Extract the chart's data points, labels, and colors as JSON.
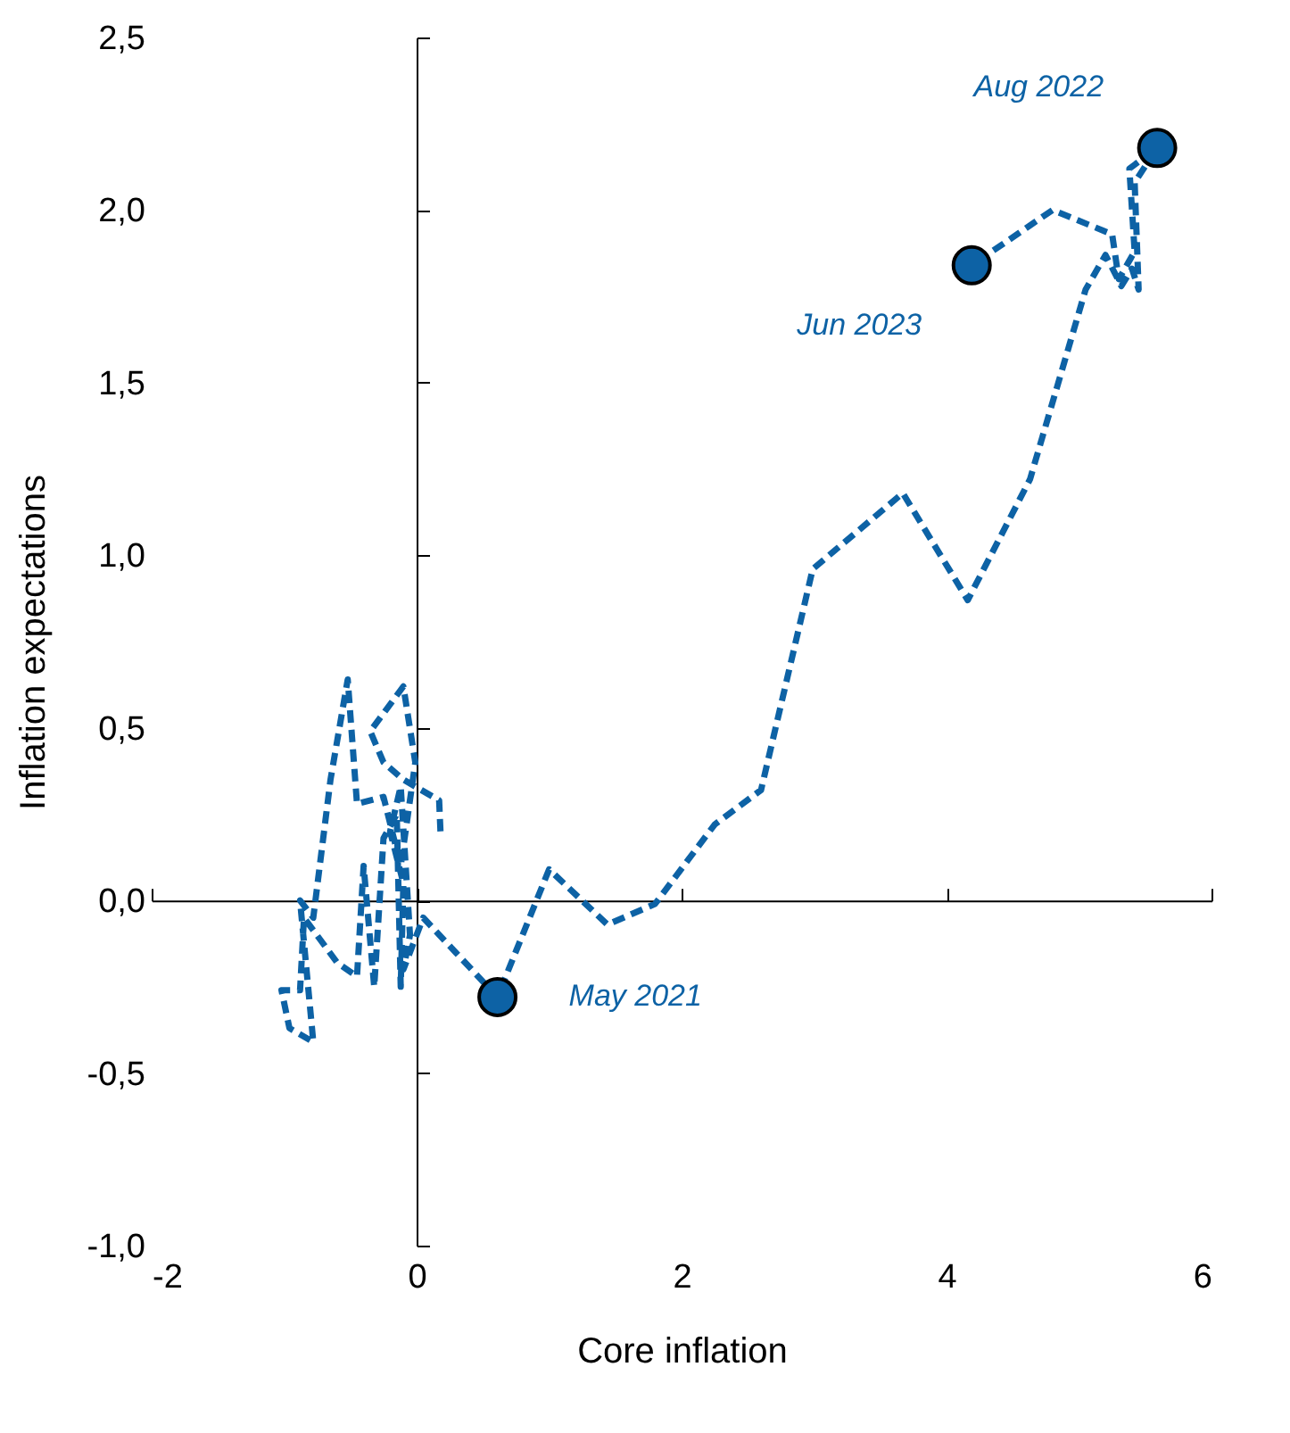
{
  "chart_data": {
    "type": "line",
    "xlabel": "Core inflation",
    "ylabel": "Inflation expectations",
    "xlim": [
      -2,
      6
    ],
    "xticks": [
      -2,
      0,
      2,
      4,
      6
    ],
    "ylim": [
      -1,
      2.5
    ],
    "yticks": [
      {
        "value": -1,
        "label": "-1,0"
      },
      {
        "value": -0.5,
        "label": "-0,5"
      },
      {
        "value": 0,
        "label": "0,0"
      },
      {
        "value": 0.5,
        "label": "0,5"
      },
      {
        "value": 1,
        "label": "1,0"
      },
      {
        "value": 1.5,
        "label": "1,5"
      },
      {
        "value": 2,
        "label": "2,0"
      },
      {
        "value": 2.5,
        "label": "2,5"
      }
    ],
    "line_style": "dashed",
    "series": [
      {
        "color": "#0d62a5",
        "x": [
          0.18,
          0.17,
          -0.1,
          -0.25,
          -0.35,
          -0.1,
          -0.01,
          -0.12,
          -0.25,
          -0.45,
          -0.52,
          -0.65,
          -0.78,
          -0.88,
          -0.78,
          -0.96,
          -1.02,
          -0.88,
          -0.85,
          -0.6,
          -0.45,
          -0.4,
          -0.32,
          -0.25,
          -0.15,
          -0.12,
          -0.1,
          -0.2,
          -0.12,
          -0.05,
          -0.1,
          0.05,
          0.61,
          1.0,
          1.44,
          1.8,
          2.25,
          2.6,
          2.99,
          3.67,
          4.16,
          4.63,
          5.05,
          5.2,
          5.32,
          5.4,
          5.45,
          5.42,
          5.59,
          5.38,
          5.42,
          5.3,
          5.25,
          4.8,
          4.19
        ],
        "values": [
          0.2,
          0.29,
          0.35,
          0.4,
          0.49,
          0.62,
          0.4,
          0.1,
          0.3,
          0.28,
          0.64,
          0.35,
          -0.05,
          0,
          -0.41,
          -0.37,
          -0.26,
          -0.26,
          -0.05,
          -0.18,
          -0.22,
          0.1,
          -0.25,
          0.18,
          0.25,
          -0.25,
          0.05,
          0.2,
          0.33,
          -0.1,
          -0.2,
          -0.05,
          -0.28,
          0.09,
          -0.07,
          -0.01,
          0.22,
          0.32,
          0.96,
          1.18,
          0.87,
          1.22,
          1.77,
          1.87,
          1.78,
          1.83,
          1.77,
          2.08,
          2.18,
          2.12,
          1.88,
          1.8,
          1.93,
          2.0,
          1.84
        ]
      },
      {
        "type": "scatter",
        "marker": "circle",
        "color": "#0d62a5",
        "x": [
          0.61,
          5.59,
          4.19
        ],
        "values": [
          -0.28,
          2.18,
          1.84
        ]
      }
    ],
    "annotations": [
      {
        "text": "May 2021",
        "x": 0.61,
        "y": -0.28
      },
      {
        "text": "Aug 2022",
        "x": 5.59,
        "y": 2.18
      },
      {
        "text": "Jun 2023",
        "x": 4.19,
        "y": 1.84
      }
    ]
  }
}
